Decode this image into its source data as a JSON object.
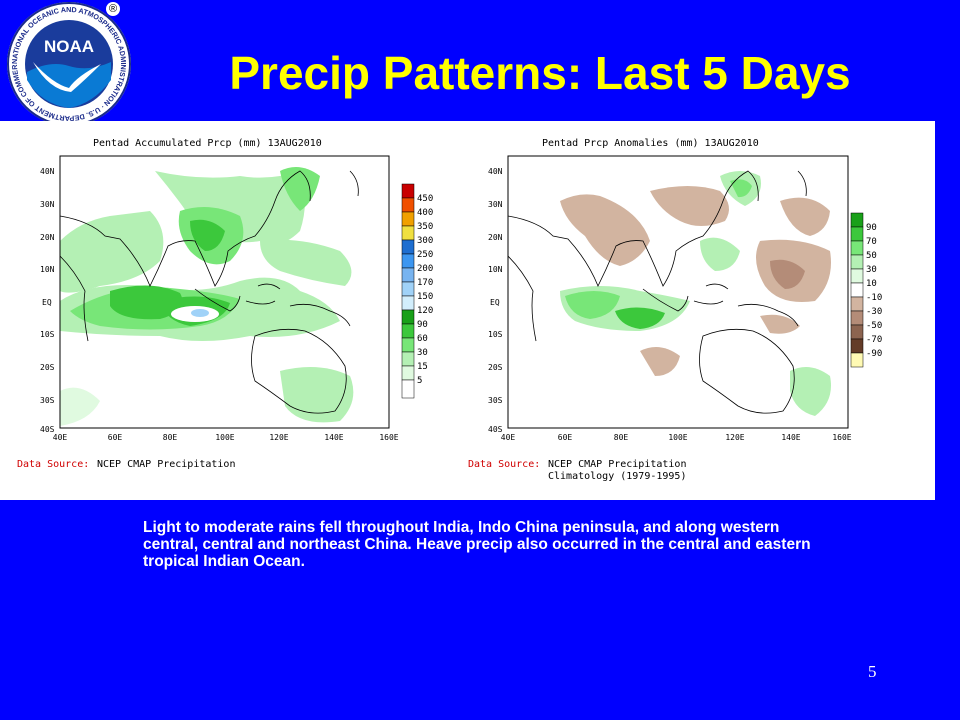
{
  "slide": {
    "title": "Precip Patterns: Last 5 Days",
    "caption": "Light to moderate rains fell throughout India, Indo China peninsula, and along western central, central and northeast China. Heave precip also occurred in the central and eastern tropical Indian Ocean.",
    "page_number": "5",
    "background_color": "#0000ff",
    "title_color": "#ffff00"
  },
  "logo": {
    "name": "NOAA",
    "ring_text": "NATIONAL OCEANIC AND ATMOSPHERIC ADMINISTRATION · U.S. DEPARTMENT OF COMMERCE",
    "registered_mark": "®",
    "icon": "noaa-logo"
  },
  "maps": {
    "left": {
      "title": "Pentad Accumulated Prcp (mm) 13AUG2010",
      "data_source_label": "Data Source:",
      "data_source": "NCEP CMAP Precipitation",
      "data_source_line2": "",
      "lat_labels": [
        "40N",
        "30N",
        "20N",
        "10N",
        "EQ",
        "10S",
        "20S",
        "30S",
        "40S"
      ],
      "lon_labels": [
        "40E",
        "60E",
        "80E",
        "100E",
        "120E",
        "140E",
        "160E"
      ],
      "legend": {
        "labels": [
          "450",
          "400",
          "350",
          "300",
          "250",
          "200",
          "170",
          "150",
          "120",
          "90",
          "60",
          "30",
          "15",
          "5"
        ],
        "colors": [
          "#c80000",
          "#f05000",
          "#f0a000",
          "#f0e040",
          "#1e6ed0",
          "#3c96f0",
          "#78b4f0",
          "#a0d2f8",
          "#d2eefc",
          "#19a019",
          "#3cc83c",
          "#78e678",
          "#b4f0b4",
          "#e0fae0",
          "#ffffff"
        ]
      }
    },
    "right": {
      "title": "Pentad Prcp Anomalies (mm) 13AUG2010",
      "data_source_label": "Data Source:",
      "data_source": "NCEP CMAP Precipitation",
      "data_source_line2": "Climatology (1979-1995)",
      "lat_labels": [
        "40N",
        "30N",
        "20N",
        "10N",
        "EQ",
        "10S",
        "20S",
        "30S",
        "40S"
      ],
      "lon_labels": [
        "40E",
        "60E",
        "80E",
        "100E",
        "120E",
        "140E",
        "160E"
      ],
      "legend": {
        "labels": [
          "90",
          "70",
          "50",
          "30",
          "10",
          "-10",
          "-30",
          "-50",
          "-70",
          "-90"
        ],
        "colors": [
          "#19a019",
          "#3cc83c",
          "#78e678",
          "#b4f0b4",
          "#e0fae0",
          "#ffffff",
          "#d2b4a0",
          "#b48c78",
          "#8c6450",
          "#643c28",
          "#fffab4"
        ]
      }
    }
  }
}
